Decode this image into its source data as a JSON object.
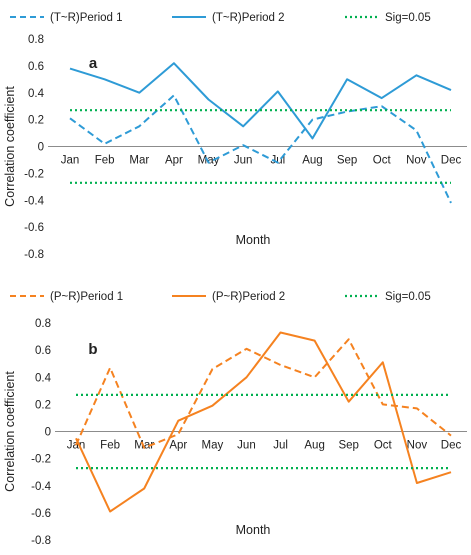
{
  "chart_data": [
    {
      "type": "line",
      "panel_label": "a",
      "categories": [
        "Jan",
        "Feb",
        "Mar",
        "Apr",
        "May",
        "Jun",
        "Jul",
        "Aug",
        "Sep",
        "Oct",
        "Nov",
        "Dec"
      ],
      "series": [
        {
          "name": "(T~R)Period 1",
          "color": "#2e9bd6",
          "style": "dashed",
          "values": [
            0.21,
            0.02,
            0.15,
            0.38,
            -0.12,
            0.01,
            -0.12,
            0.2,
            0.26,
            0.3,
            0.12,
            -0.42
          ]
        },
        {
          "name": "(T~R)Period 2",
          "color": "#2e9bd6",
          "style": "solid",
          "values": [
            0.58,
            0.5,
            0.4,
            0.62,
            0.35,
            0.15,
            0.41,
            0.06,
            0.5,
            0.36,
            0.53,
            0.42
          ]
        },
        {
          "name": "Sig=0.05",
          "color": "#00b050",
          "style": "dotted",
          "values": [
            0.27,
            0.27,
            0.27,
            0.27,
            0.27,
            0.27,
            0.27,
            0.27,
            0.27,
            0.27,
            0.27,
            0.27
          ],
          "values_neg": [
            -0.27,
            -0.27,
            -0.27,
            -0.27,
            -0.27,
            -0.27,
            -0.27,
            -0.27,
            -0.27,
            -0.27,
            -0.27,
            -0.27
          ]
        }
      ],
      "ylim": [
        -0.8,
        0.8
      ],
      "yticks": [
        "0.8",
        "0.6",
        "0.4",
        "0.2",
        "0",
        "-0.2",
        "-0.4",
        "-0.6",
        "-0.8"
      ],
      "xlabel": "Month",
      "ylabel": "Correlation coefficient",
      "grid": false,
      "legend_position": "top"
    },
    {
      "type": "line",
      "panel_label": "b",
      "categories": [
        "Jan",
        "Feb",
        "Mar",
        "Apr",
        "May",
        "Jun",
        "Jul",
        "Aug",
        "Sep",
        "Oct",
        "Nov",
        "Dec"
      ],
      "series": [
        {
          "name": "(P~R)Period 1",
          "color": "#f58220",
          "style": "dashed",
          "values": [
            -0.1,
            0.47,
            -0.12,
            -0.02,
            0.46,
            0.61,
            0.49,
            0.4,
            0.68,
            0.2,
            0.17,
            -0.03
          ]
        },
        {
          "name": "(P~R)Period 2",
          "color": "#f58220",
          "style": "solid",
          "values": [
            -0.05,
            -0.59,
            -0.42,
            0.08,
            0.19,
            0.4,
            0.73,
            0.67,
            0.22,
            0.51,
            -0.38,
            -0.3
          ]
        },
        {
          "name": "Sig=0.05",
          "color": "#00b050",
          "style": "dotted",
          "values": [
            0.27,
            0.27,
            0.27,
            0.27,
            0.27,
            0.27,
            0.27,
            0.27,
            0.27,
            0.27,
            0.27,
            0.27
          ],
          "values_neg": [
            -0.27,
            -0.27,
            -0.27,
            -0.27,
            -0.27,
            -0.27,
            -0.27,
            -0.27,
            -0.27,
            -0.27,
            -0.27,
            -0.27
          ]
        }
      ],
      "ylim": [
        -0.8,
        0.8
      ],
      "yticks": [
        "0.8",
        "0.6",
        "0.4",
        "0.2",
        "0",
        "-0.2",
        "-0.4",
        "-0.6",
        "-0.8"
      ],
      "xlabel": "Month",
      "ylabel": "Correlation coefficient",
      "grid": false,
      "legend_position": "top"
    }
  ]
}
